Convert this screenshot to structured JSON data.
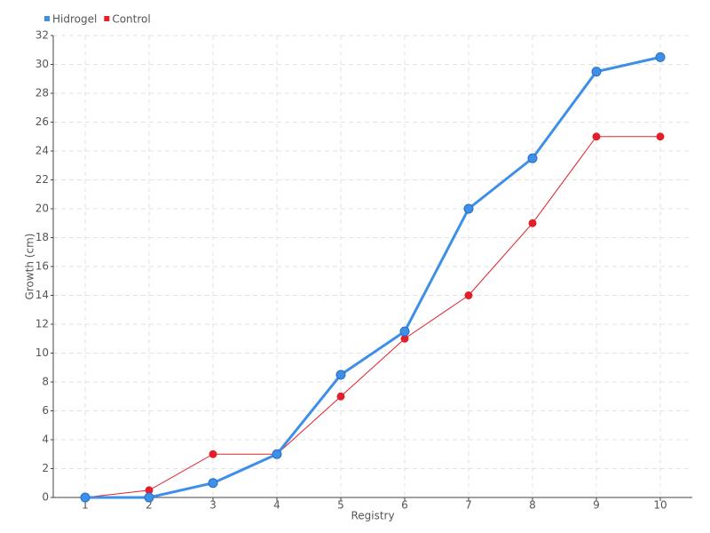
{
  "chart_data": {
    "type": "line",
    "x_label": "Registry",
    "y_label": "Growth (cm)",
    "categories": [
      "1",
      "2",
      "3",
      "4",
      "5",
      "6",
      "7",
      "8",
      "9",
      "10"
    ],
    "series": [
      {
        "name": "Hidrogel",
        "color": "#3d8fe8",
        "values": [
          0,
          0,
          1,
          3,
          8.5,
          11.5,
          20,
          23.5,
          29.5,
          30.5
        ]
      },
      {
        "name": "Control",
        "color": "#e0202a",
        "values": [
          0,
          0.5,
          3,
          3,
          7,
          11,
          14,
          19,
          25,
          25
        ]
      }
    ],
    "ylim": [
      0,
      32
    ],
    "yticks": [
      0,
      2,
      4,
      6,
      8,
      10,
      12,
      14,
      16,
      18,
      20,
      22,
      24,
      26,
      28,
      30,
      32
    ],
    "grid": true,
    "legend": "top-left"
  }
}
